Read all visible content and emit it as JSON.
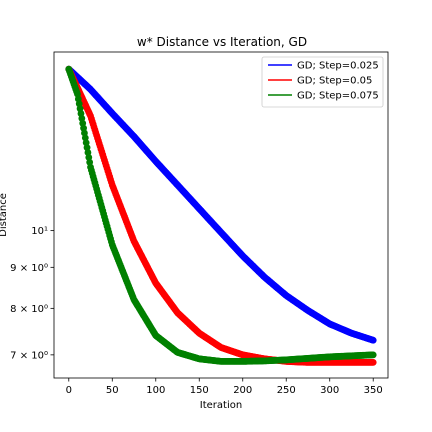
{
  "chart_data": {
    "type": "scatter",
    "title": "w* Distance vs Iteration, GD",
    "xlabel": "Iteration",
    "ylabel": "Distance",
    "xlim": [
      -17,
      367
    ],
    "ylim": [
      6.55,
      16.7
    ],
    "yscale": "log",
    "grid": false,
    "legend_position": "top-right",
    "x_ticks": [
      0,
      50,
      100,
      150,
      200,
      250,
      300,
      350
    ],
    "x_tick_labels": [
      "0",
      "50",
      "100",
      "150",
      "200",
      "250",
      "300",
      "350"
    ],
    "y_ticks": [
      7,
      8,
      9,
      10
    ],
    "y_tick_labels": [
      "7 × 10⁰",
      "8 × 10⁰",
      "9 × 10⁰",
      "10¹"
    ],
    "series": [
      {
        "name": "GD; Step=0.025",
        "color": "#0000ff",
        "x": [
          0,
          25,
          50,
          75,
          100,
          125,
          150,
          175,
          200,
          225,
          250,
          275,
          300,
          325,
          350
        ],
        "y": [
          15.9,
          15.0,
          14.0,
          13.1,
          12.2,
          11.4,
          10.65,
          9.95,
          9.3,
          8.75,
          8.3,
          7.95,
          7.65,
          7.45,
          7.3
        ]
      },
      {
        "name": "GD; Step=0.05",
        "color": "#ff0000",
        "x": [
          0,
          25,
          50,
          75,
          100,
          125,
          150,
          175,
          200,
          225,
          250,
          275,
          300,
          325,
          350
        ],
        "y": [
          15.9,
          13.9,
          11.4,
          9.7,
          8.6,
          7.9,
          7.45,
          7.15,
          7.0,
          6.92,
          6.87,
          6.85,
          6.85,
          6.85,
          6.85
        ]
      },
      {
        "name": "GD; Step=0.075",
        "color": "#008000",
        "x": [
          0,
          10,
          25,
          50,
          75,
          100,
          125,
          150,
          175,
          200,
          225,
          250,
          275,
          300,
          325,
          350
        ],
        "y": [
          15.9,
          14.8,
          12.0,
          9.6,
          8.2,
          7.4,
          7.05,
          6.92,
          6.87,
          6.87,
          6.88,
          6.9,
          6.93,
          6.96,
          6.98,
          7.0
        ]
      }
    ]
  }
}
